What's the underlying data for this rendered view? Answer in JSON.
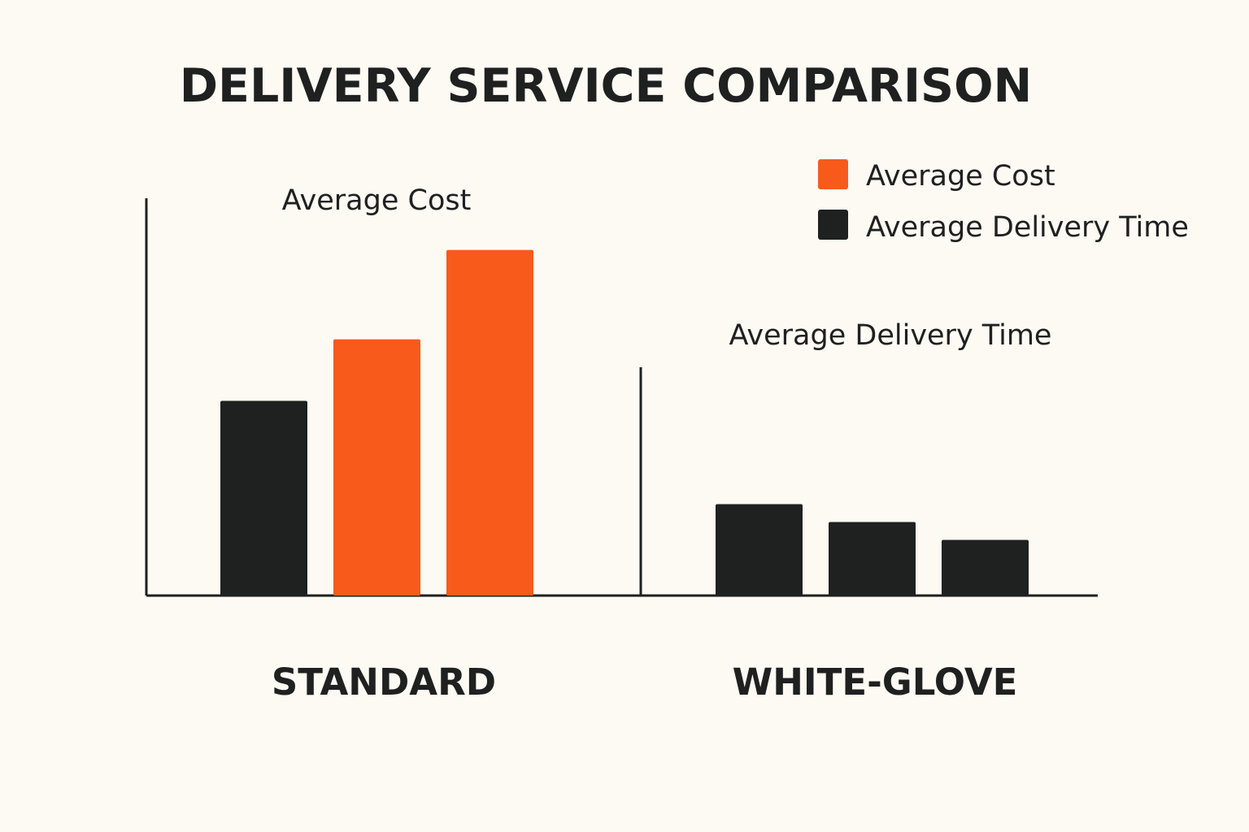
{
  "colors": {
    "cost": "#f85a1c",
    "time": "#1f2020",
    "background": "#fdfaf4"
  },
  "chart_data": {
    "type": "bar",
    "title": "DELIVERY SERVICE COMPARISON",
    "legend": {
      "position": "top-right",
      "items": [
        {
          "label": "Average Cost",
          "color": "#f85a1c"
        },
        {
          "label": "Average Delivery Time",
          "color": "#1f2020"
        }
      ]
    },
    "groups": [
      {
        "name": "STANDARD",
        "panel_label": "Average Cost",
        "bars": [
          {
            "series": "Average Delivery Time",
            "value": 4.9
          },
          {
            "series": "Average Cost",
            "value": 6.45
          },
          {
            "series": "Average Cost",
            "value": 8.7
          }
        ]
      },
      {
        "name": "WHITE-GLOVE",
        "panel_label": "Average Delivery Time",
        "bars": [
          {
            "series": "Average Delivery Time",
            "value": 2.3
          },
          {
            "series": "Average Delivery Time",
            "value": 1.85
          },
          {
            "series": "Average Delivery Time",
            "value": 1.4
          }
        ]
      }
    ],
    "ylim": [
      0,
      10
    ],
    "xlabel": "",
    "ylabel": "",
    "grid": false
  }
}
